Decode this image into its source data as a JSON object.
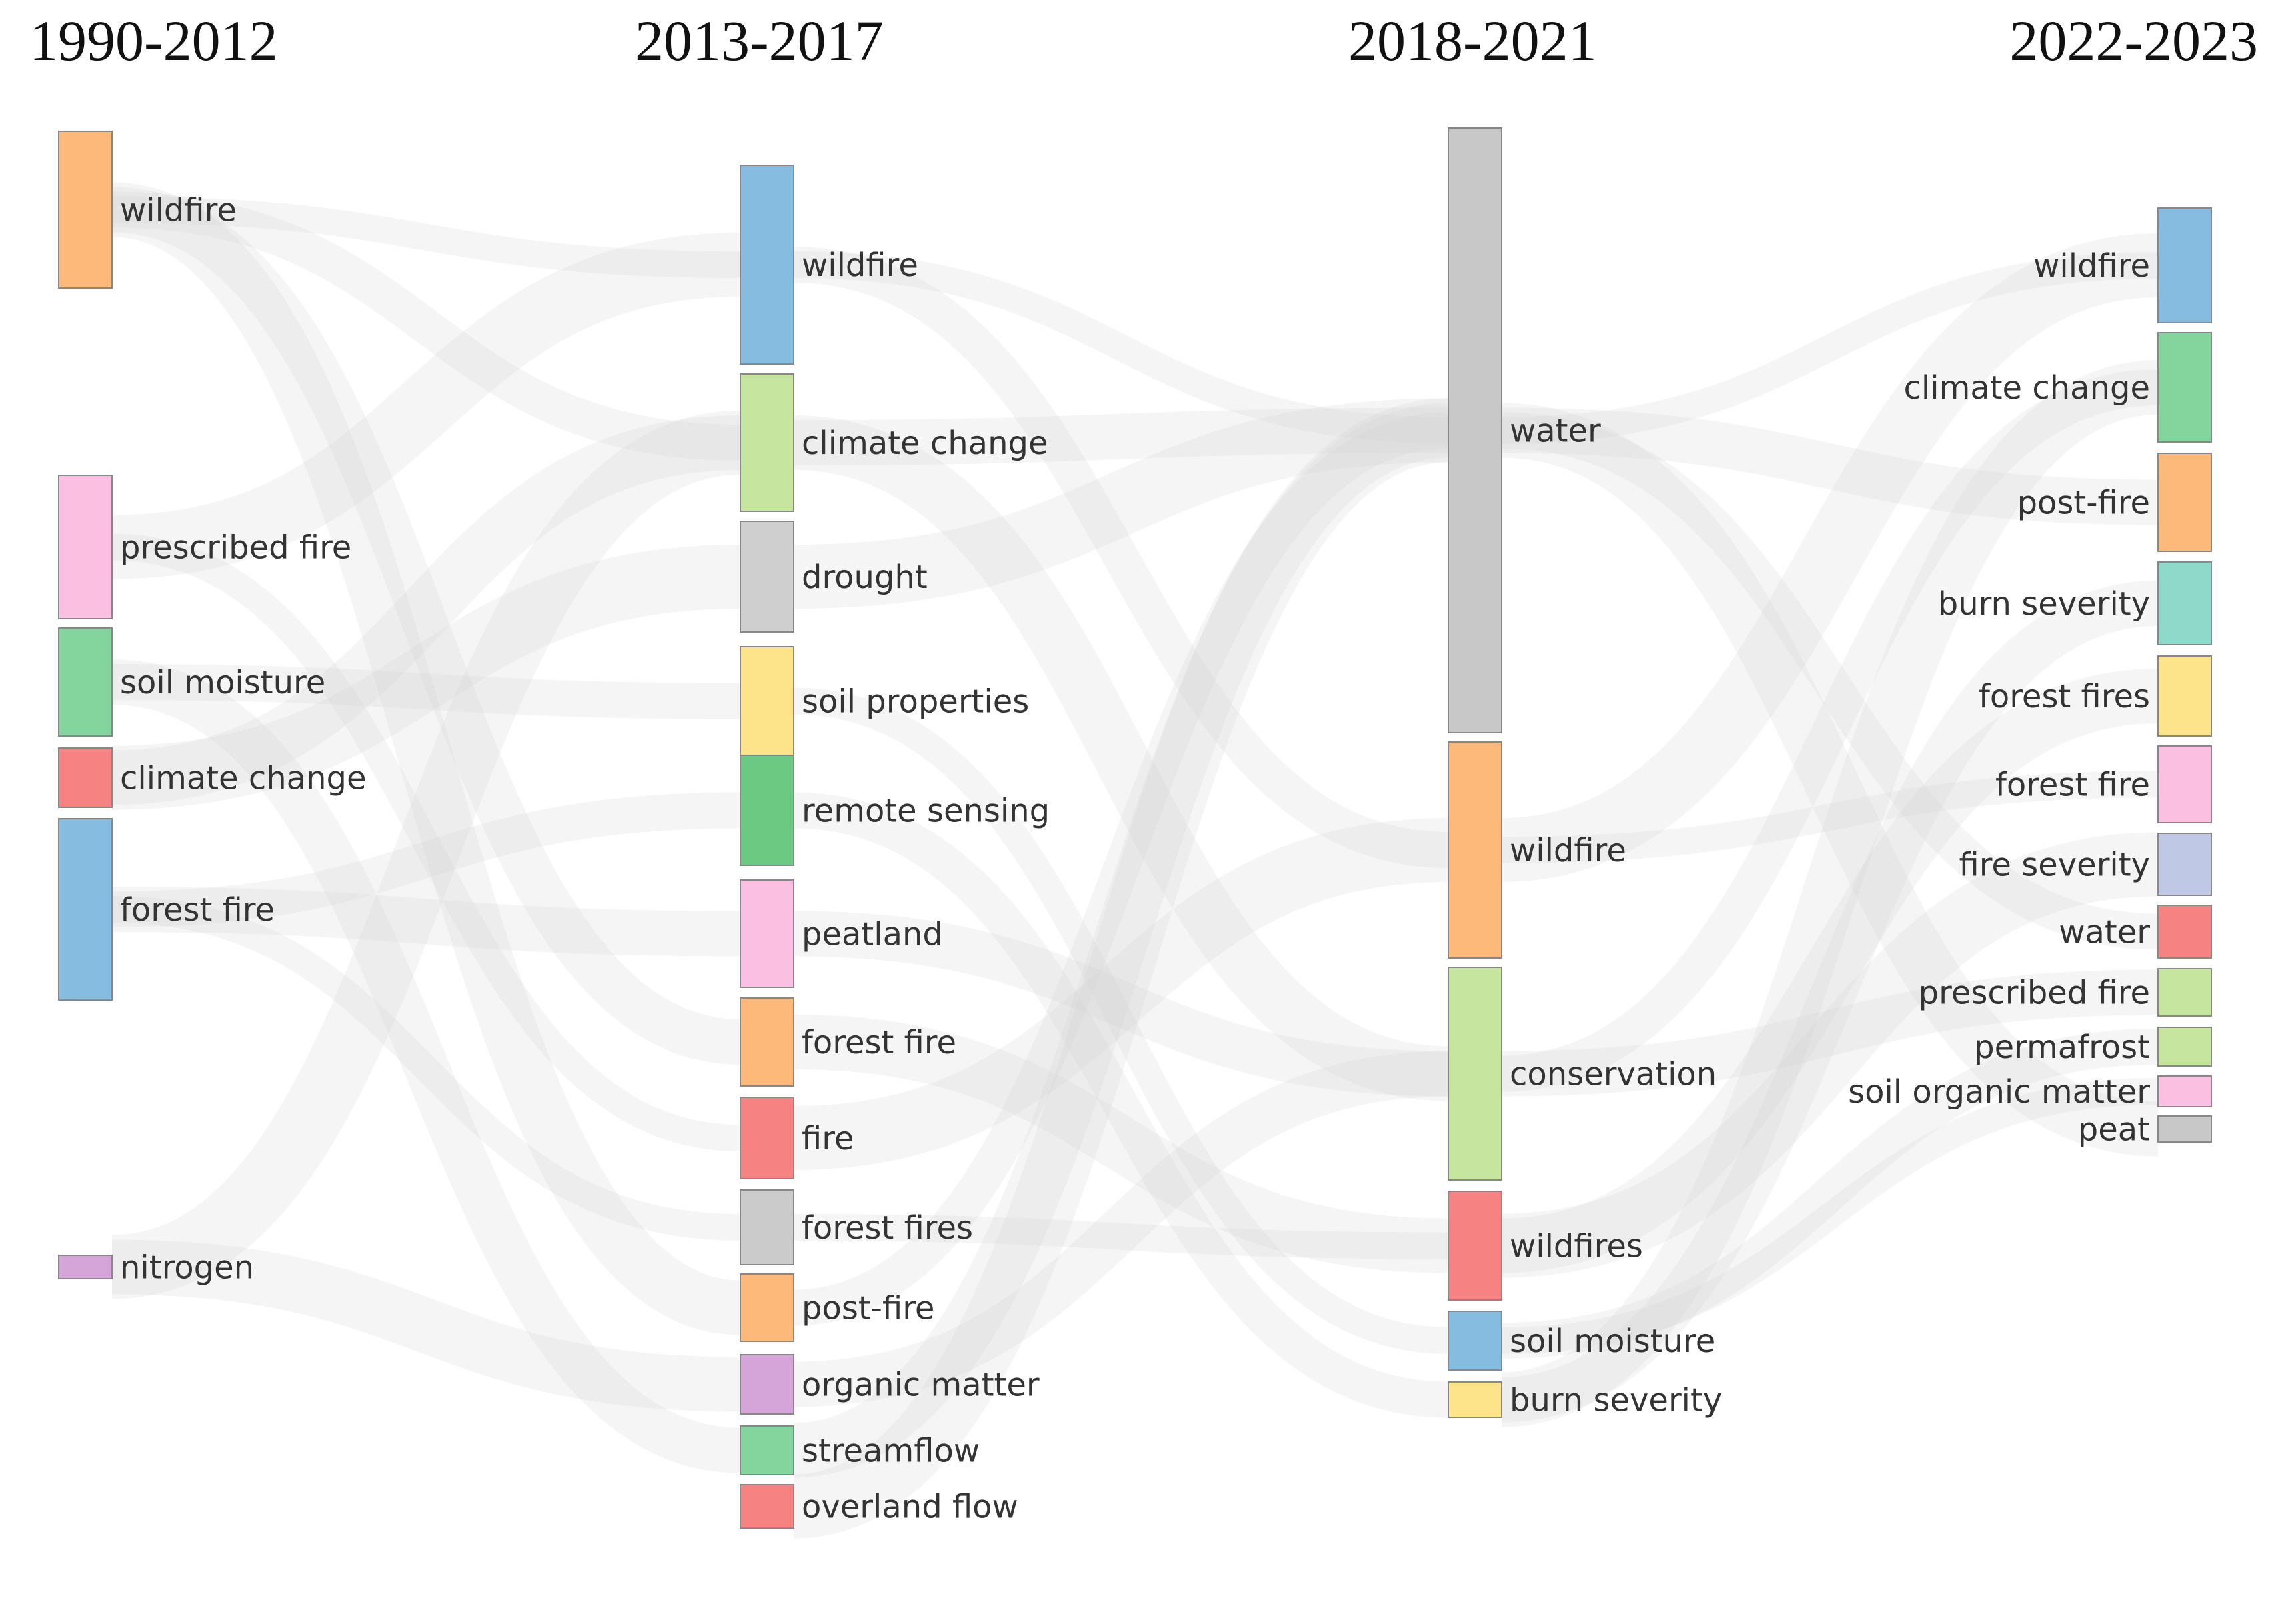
{
  "periods": [
    "1990-2012",
    "2013-2017",
    "2018-2021",
    "2022-2023"
  ],
  "nodes": [
    {
      "id": "p0_wildfire",
      "period": 0,
      "label": "wildfire",
      "color": "#fdb97a"
    },
    {
      "id": "p0_prescribed_fire",
      "period": 0,
      "label": "prescribed fire",
      "color": "#fbbfe1"
    },
    {
      "id": "p0_soil_moisture",
      "period": 0,
      "label": "soil moisture",
      "color": "#84d59d"
    },
    {
      "id": "p0_climate_change",
      "period": 0,
      "label": "climate change",
      "color": "#f78282"
    },
    {
      "id": "p0_forest_fire",
      "period": 0,
      "label": "forest fire",
      "color": "#86bce0"
    },
    {
      "id": "p0_nitrogen",
      "period": 0,
      "label": "nitrogen",
      "color": "#d5a4d9"
    },
    {
      "id": "p1_wildfire",
      "period": 1,
      "label": "wildfire",
      "color": "#86bce0"
    },
    {
      "id": "p1_climate_change",
      "period": 1,
      "label": "climate change",
      "color": "#c6e6a0"
    },
    {
      "id": "p1_drought",
      "period": 1,
      "label": "drought",
      "color": "#cfcfcf"
    },
    {
      "id": "p1_soil_properties",
      "period": 1,
      "label": "soil properties",
      "color": "#fde38a"
    },
    {
      "id": "p1_remote_sensing",
      "period": 1,
      "label": "remote sensing",
      "color": "#6cc982"
    },
    {
      "id": "p1_peatland",
      "period": 1,
      "label": "peatland",
      "color": "#fbbfe1"
    },
    {
      "id": "p1_forest_fire",
      "period": 1,
      "label": "forest fire",
      "color": "#fdb97a"
    },
    {
      "id": "p1_fire",
      "period": 1,
      "label": "fire",
      "color": "#f78282"
    },
    {
      "id": "p1_forest_fires",
      "period": 1,
      "label": "forest fires",
      "color": "#cbcbcb"
    },
    {
      "id": "p1_post_fire",
      "period": 1,
      "label": "post-fire",
      "color": "#fdb97a"
    },
    {
      "id": "p1_organic_matter",
      "period": 1,
      "label": "organic matter",
      "color": "#d5a4d9"
    },
    {
      "id": "p1_streamflow",
      "period": 1,
      "label": "streamflow",
      "color": "#84d59d"
    },
    {
      "id": "p1_overland_flow",
      "period": 1,
      "label": "overland flow",
      "color": "#f78282"
    },
    {
      "id": "p2_water",
      "period": 2,
      "label": "water",
      "color": "#c8c8c8"
    },
    {
      "id": "p2_wildfire",
      "period": 2,
      "label": "wildfire",
      "color": "#fdb97a"
    },
    {
      "id": "p2_conservation",
      "period": 2,
      "label": "conservation",
      "color": "#c6e6a0"
    },
    {
      "id": "p2_wildfires",
      "period": 2,
      "label": "wildfires",
      "color": "#f78282"
    },
    {
      "id": "p2_soil_moisture",
      "period": 2,
      "label": "soil moisture",
      "color": "#86bce0"
    },
    {
      "id": "p2_burn_severity",
      "period": 2,
      "label": "burn severity",
      "color": "#fde38a"
    },
    {
      "id": "p3_wildfire",
      "period": 3,
      "label": "wildfire",
      "color": "#86bce0"
    },
    {
      "id": "p3_climate_change",
      "period": 3,
      "label": "climate change",
      "color": "#84d59d"
    },
    {
      "id": "p3_post_fire",
      "period": 3,
      "label": "post-fire",
      "color": "#fdb97a"
    },
    {
      "id": "p3_burn_severity",
      "period": 3,
      "label": "burn severity",
      "color": "#8ed9c9"
    },
    {
      "id": "p3_forest_fires",
      "period": 3,
      "label": "forest fires",
      "color": "#fde38a"
    },
    {
      "id": "p3_forest_fire",
      "period": 3,
      "label": "forest fire",
      "color": "#fbbfe1"
    },
    {
      "id": "p3_fire_severity",
      "period": 3,
      "label": "fire severity",
      "color": "#bfc9e6"
    },
    {
      "id": "p3_water",
      "period": 3,
      "label": "water",
      "color": "#f78282"
    },
    {
      "id": "p3_prescribed_fire",
      "period": 3,
      "label": "prescribed fire",
      "color": "#c6e6a0"
    },
    {
      "id": "p3_permafrost",
      "period": 3,
      "label": "permafrost",
      "color": "#c6e6a0"
    },
    {
      "id": "p3_soil_organic_matter",
      "period": 3,
      "label": "soil organic matter",
      "color": "#fbbfe1"
    },
    {
      "id": "p3_peat",
      "period": 3,
      "label": "peat",
      "color": "#c8c8c8"
    }
  ]
}
